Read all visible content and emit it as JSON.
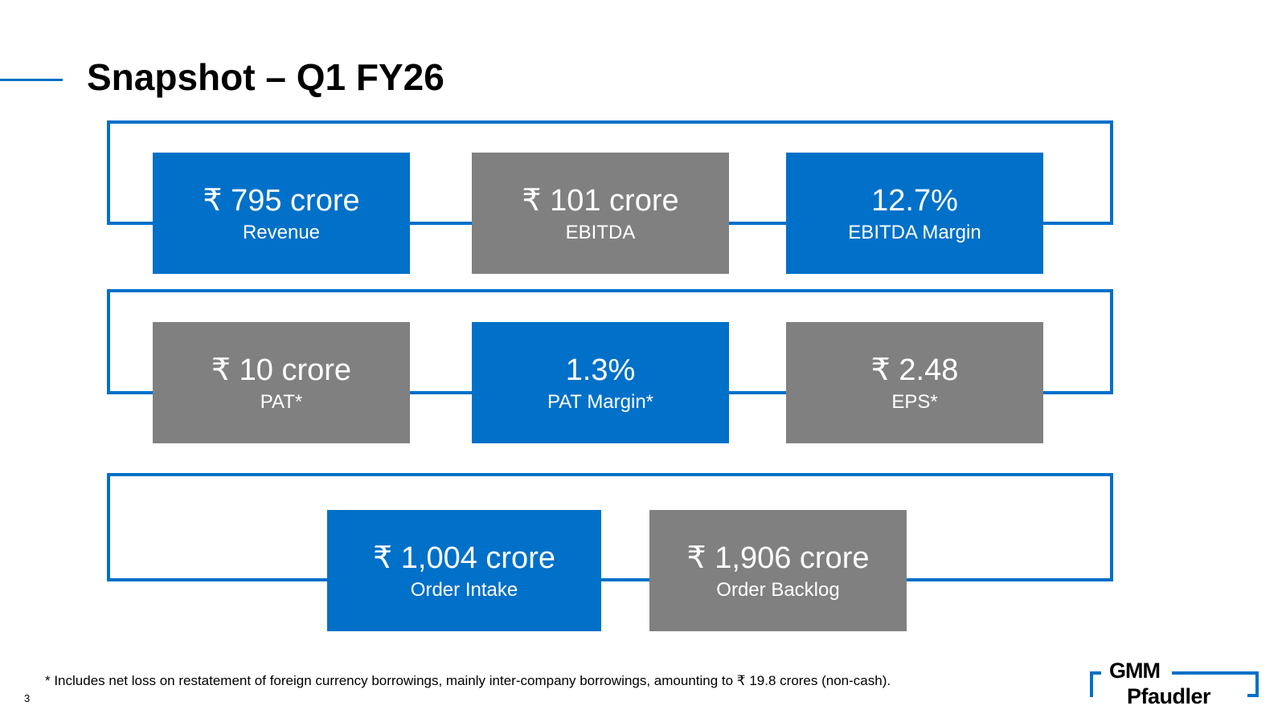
{
  "slide": {
    "title": "Snapshot – Q1 FY26",
    "page_number": "3",
    "footnote": "* Includes net loss on restatement of foreign currency borrowings, mainly inter-company borrowings, amounting to ₹ 19.8 crores (non-cash)."
  },
  "kpis": {
    "revenue": {
      "value": "₹ 795 crore",
      "label": "Revenue"
    },
    "ebitda": {
      "value": "₹ 101 crore",
      "label": "EBITDA"
    },
    "ebitda_margin": {
      "value": "12.7%",
      "label": "EBITDA Margin"
    },
    "pat": {
      "value": "₹ 10 crore",
      "label": "PAT*"
    },
    "pat_margin": {
      "value": "1.3%",
      "label": "PAT Margin*"
    },
    "eps": {
      "value": "₹ 2.48",
      "label": "EPS*"
    },
    "order_intake": {
      "value": "₹ 1,004 crore",
      "label": "Order Intake"
    },
    "order_backlog": {
      "value": "₹ 1,906 crore",
      "label": "Order Backlog"
    }
  },
  "logo": {
    "line1": "GMM",
    "line2": "Pfaudler"
  },
  "colors": {
    "accent_blue": "#0070c8",
    "box_gray": "#808080"
  }
}
